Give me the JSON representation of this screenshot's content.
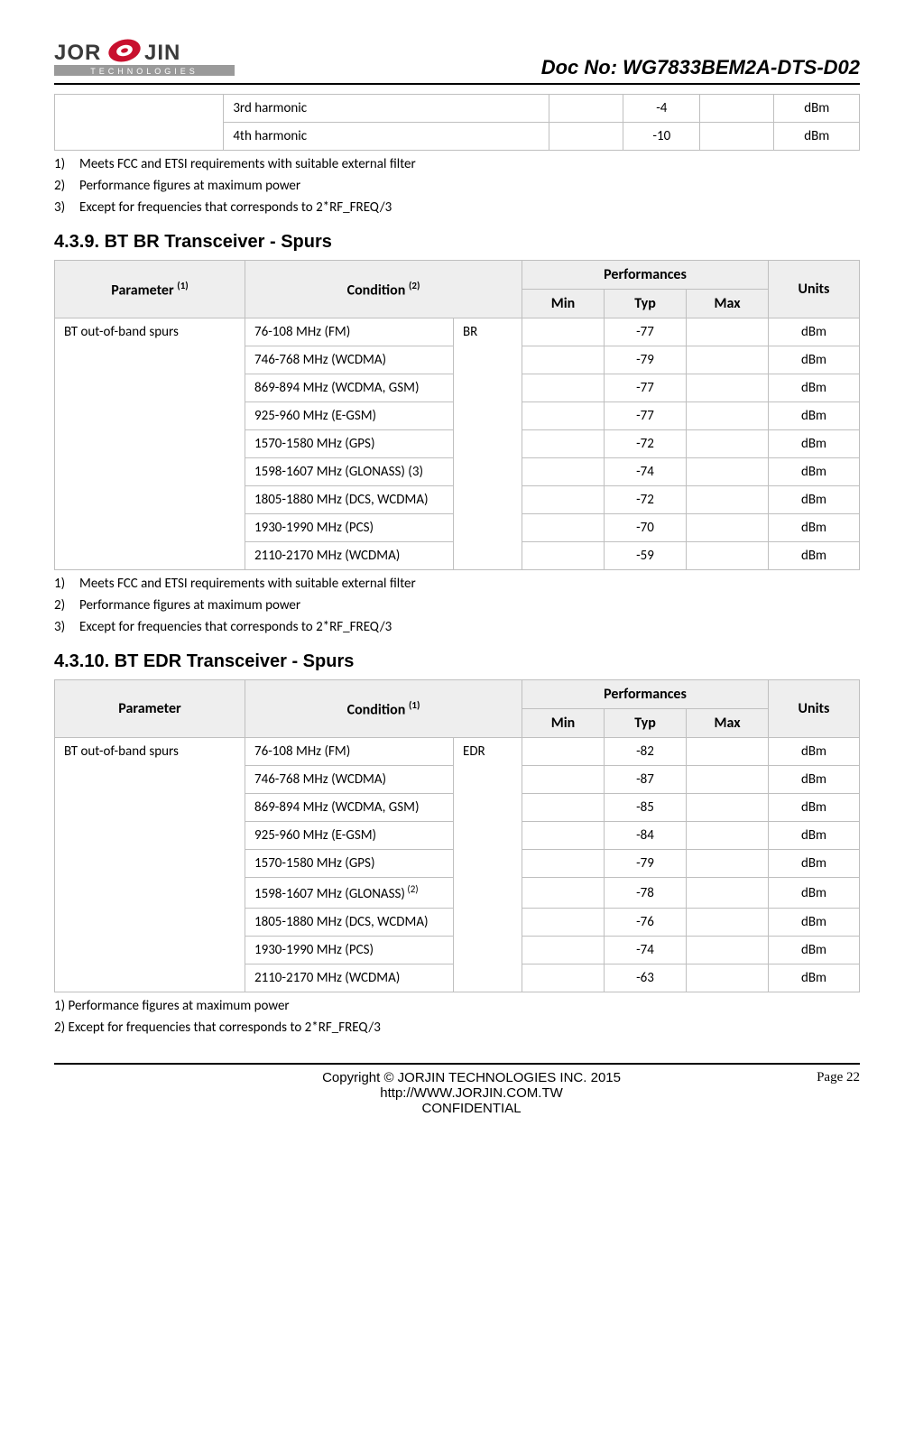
{
  "header": {
    "doc_no": "Doc No: WG7833BEM2A-DTS-D02",
    "logo_text_main": "JOR   JIN",
    "logo_text_sub": "TECHNOLOGIES"
  },
  "top_table_rows": [
    {
      "cond": "3rd harmonic",
      "min": "",
      "typ": "-4",
      "max": "",
      "units": "dBm"
    },
    {
      "cond": "4th harmonic",
      "min": "",
      "typ": "-10",
      "max": "",
      "units": "dBm"
    }
  ],
  "notes_a": [
    {
      "n": "1)",
      "t": "Meets FCC and ETSI requirements with suitable external filter"
    },
    {
      "n": "2)",
      "t": "Performance figures at maximum power"
    },
    {
      "n": "3)",
      "t": "Except for frequencies that corresponds to 2*RF_FREQ/3"
    }
  ],
  "section_439": "4.3.9.  BT BR Transceiver - Spurs",
  "table_br": {
    "headers": {
      "parameter": "Parameter ",
      "parameter_sup": "(1)",
      "condition": "Condition ",
      "condition_sup": "(2)",
      "performances": "Performances",
      "min": "Min",
      "typ": "Typ",
      "max": "Max",
      "units": "Units"
    },
    "param_label": "BT out-of-band spurs",
    "mode": "BR",
    "rows": [
      {
        "cond": "76-108 MHz    (FM)",
        "typ": "-77",
        "units": "dBm"
      },
      {
        "cond": "746-768 MHz    (WCDMA)",
        "typ": "-79",
        "units": "dBm"
      },
      {
        "cond": "869-894 MHz    (WCDMA, GSM)",
        "typ": "-77",
        "units": "dBm"
      },
      {
        "cond": "925-960 MHz    (E-GSM)",
        "typ": "-77",
        "units": "dBm"
      },
      {
        "cond": "1570-1580 MHz    (GPS)",
        "typ": "-72",
        "units": "dBm"
      },
      {
        "cond": "1598-1607 MHz    (GLONASS)    (3)",
        "typ": "-74",
        "units": "dBm"
      },
      {
        "cond": "1805-1880 MHz    (DCS, WCDMA)",
        "typ": "-72",
        "units": "dBm"
      },
      {
        "cond": "1930-1990 MHz    (PCS)",
        "typ": "-70",
        "units": "dBm"
      },
      {
        "cond": "2110-2170 MHz    (WCDMA)",
        "typ": "-59",
        "units": "dBm"
      }
    ]
  },
  "notes_b": [
    {
      "n": "1)",
      "t": "Meets FCC and ETSI requirements with suitable external filter"
    },
    {
      "n": "2)",
      "t": "Performance figures at maximum power"
    },
    {
      "n": "3)",
      "t": "Except for frequencies that corresponds to 2*RF_FREQ/3"
    }
  ],
  "section_4310": "4.3.10.   BT EDR Transceiver - Spurs",
  "table_edr": {
    "headers": {
      "parameter": "Parameter",
      "condition": "Condition ",
      "condition_sup": "(1)",
      "performances": "Performances",
      "min": "Min",
      "typ": "Typ",
      "max": "Max",
      "units": "Units"
    },
    "param_label": "BT out-of-band spurs",
    "mode": "EDR",
    "rows": [
      {
        "cond": "76-108 MHz (FM)",
        "typ": "-82",
        "units": "dBm"
      },
      {
        "cond": "746-768 MHz (WCDMA)",
        "typ": "-87",
        "units": "dBm"
      },
      {
        "cond": "869-894 MHz (WCDMA, GSM)",
        "typ": "-85",
        "units": "dBm"
      },
      {
        "cond": "925-960 MHz (E-GSM)",
        "typ": "-84",
        "units": "dBm"
      },
      {
        "cond": "1570-1580 MHz (GPS)",
        "typ": "-79",
        "units": "dBm"
      },
      {
        "cond": "1598-1607 MHz (GLONASS)",
        "sup": "(2)",
        "typ": "-78",
        "units": "dBm"
      },
      {
        "cond": "1805-1880 MHz (DCS, WCDMA)",
        "typ": "-76",
        "units": "dBm"
      },
      {
        "cond": "1930-1990 MHz (PCS)",
        "typ": "-74",
        "units": "dBm"
      },
      {
        "cond": "2110-2170 MHz (WCDMA)",
        "typ": "-63",
        "units": "dBm"
      }
    ]
  },
  "notes_c": [
    {
      "n": "",
      "t": "1) Performance figures at maximum power"
    },
    {
      "n": "",
      "t": "2) Except for frequencies that corresponds to 2*RF_FREQ/3"
    }
  ],
  "footer": {
    "line1": "Copyright © JORJIN TECHNOLOGIES INC. 2015",
    "line2": "http://WWW.JORJIN.COM.TW",
    "line3": "CONFIDENTIAL",
    "page": "Page 22"
  }
}
